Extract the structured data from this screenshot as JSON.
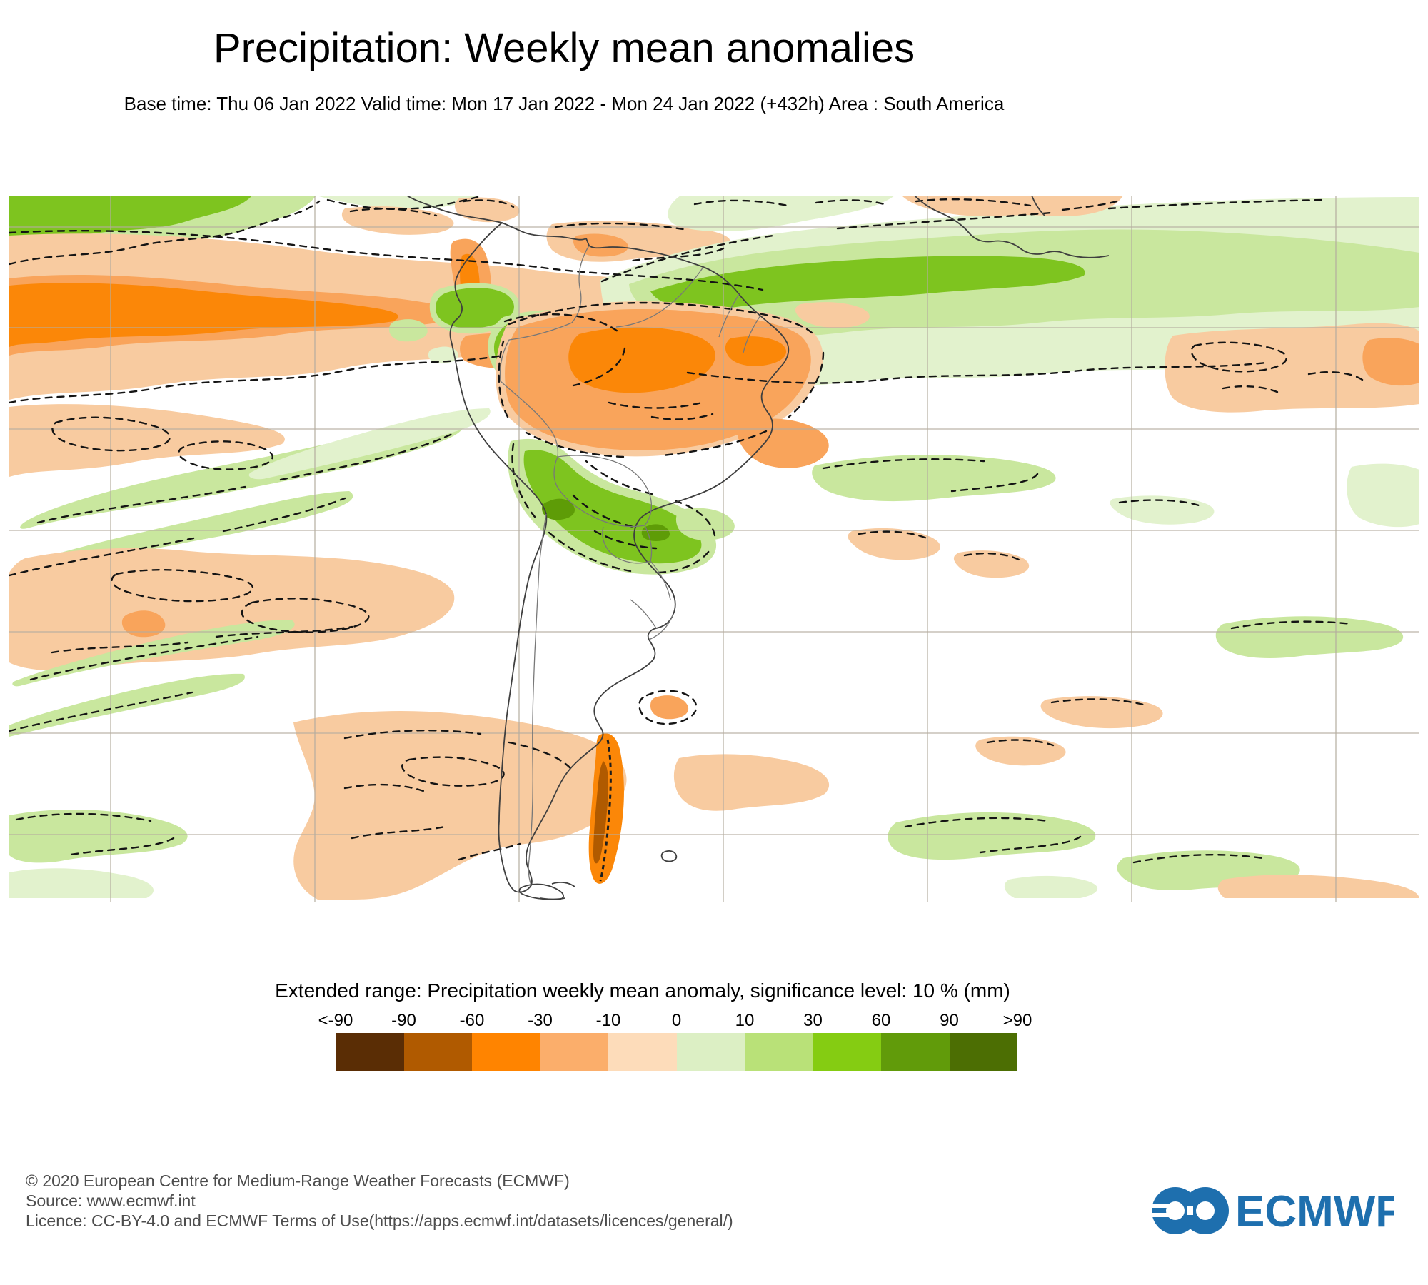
{
  "header": {
    "title": "Precipitation: Weekly mean anomalies",
    "subtitle": "Base time: Thu 06 Jan 2022 Valid time: Mon 17 Jan 2022 - Mon 24 Jan 2022 (+432h) Area : South America"
  },
  "legend": {
    "title": "Extended range: Precipitation weekly mean anomaly, significance level: 10 % (mm)",
    "ticks": [
      "<-90",
      "-90",
      "-60",
      "-30",
      "-10",
      "0",
      "10",
      "30",
      "60",
      "90",
      ">90"
    ],
    "colors": [
      "#5A2D05",
      "#B05A00",
      "#FF8400",
      "#FBAE6B",
      "#FDDCBA",
      "#DCEFC4",
      "#B9E178",
      "#85CC12",
      "#619B0A",
      "#4C6E03"
    ]
  },
  "footer": {
    "lines": [
      "© 2020 European Centre for Medium-Range Weather Forecasts (ECMWF)",
      "Source: www.ecmwf.int",
      "Licence: CC-BY-4.0 and ECMWF Terms of Use(https://apps.ecmwf.int/datasets/licences/general/)"
    ]
  },
  "logo": {
    "text": "ECMWF"
  },
  "palette": {
    "orange_pale": "#F8CBA0",
    "orange_mid": "#F9A45B",
    "orange_strong": "#FB8708",
    "brown": "#B05A00",
    "green_pale": "#E2F2CD",
    "green_light": "#C9E79E",
    "green_mid": "#7EC41F",
    "green_dark": "#5E9C07",
    "grid": "#B5AD9F",
    "coast": "#3F3F3F",
    "border": "#787878",
    "contour": "#141414",
    "logo_blue": "#1E6FAE",
    "footer_gray": "#4D4D4D"
  }
}
